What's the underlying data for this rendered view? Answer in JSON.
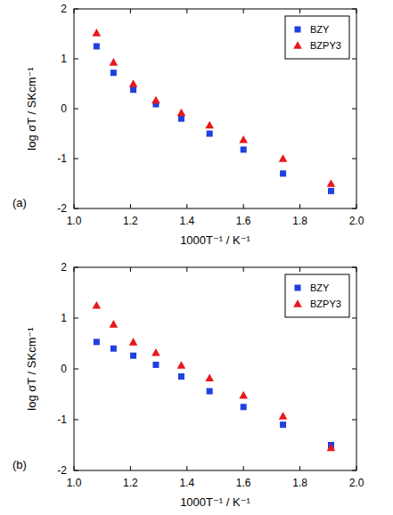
{
  "chart_data": [
    {
      "type": "scatter",
      "annotations": [
        "(a)"
      ],
      "x_label": "1000T⁻¹ / K⁻¹",
      "y_label": "log σT / SKcm⁻¹",
      "x": [
        1.08,
        1.14,
        1.21,
        1.29,
        1.38,
        1.48,
        1.6,
        1.74,
        1.91
      ],
      "series": [
        {
          "name": "BZY",
          "color": "#1f3fe0",
          "marker": "square",
          "values": [
            1.25,
            0.72,
            0.38,
            0.09,
            -0.2,
            -0.5,
            -0.82,
            -1.3,
            -1.65
          ]
        },
        {
          "name": "BZPY3",
          "color": "#e8171b",
          "marker": "triangle",
          "values": [
            1.52,
            0.93,
            0.5,
            0.17,
            -0.08,
            -0.33,
            -0.62,
            -1.0,
            -1.5
          ]
        }
      ],
      "xlim": [
        1.0,
        2.0
      ],
      "xticks": [
        {
          "value": 1.0,
          "label": "1.0"
        },
        {
          "value": 1.2,
          "label": "1.2"
        },
        {
          "value": 1.4,
          "label": "1.4"
        },
        {
          "value": 1.6,
          "label": "1.6"
        },
        {
          "value": 1.8,
          "label": "1.8"
        },
        {
          "value": 2.0,
          "label": "2.0"
        }
      ],
      "ylim": [
        -2,
        2
      ],
      "yticks": [
        -2,
        -1,
        0,
        1,
        2
      ],
      "legend": "top-right",
      "grid": false
    },
    {
      "type": "scatter",
      "annotations": [
        "(b)"
      ],
      "x_label": "1000T⁻¹ / K⁻¹",
      "y_label": "log σT / SKcm⁻¹",
      "x": [
        1.08,
        1.14,
        1.21,
        1.29,
        1.38,
        1.48,
        1.6,
        1.74,
        1.91
      ],
      "series": [
        {
          "name": "BZY",
          "color": "#1f3fe0",
          "marker": "square",
          "values": [
            0.53,
            0.4,
            0.26,
            0.08,
            -0.15,
            -0.44,
            -0.75,
            -1.1,
            -1.5
          ]
        },
        {
          "name": "BZPY3",
          "color": "#e8171b",
          "marker": "triangle",
          "values": [
            1.25,
            0.88,
            0.53,
            0.32,
            0.07,
            -0.18,
            -0.52,
            -0.93,
            -1.55
          ]
        }
      ],
      "xlim": [
        1.0,
        2.0
      ],
      "xticks": [
        {
          "value": 1.0,
          "label": "1.0"
        },
        {
          "value": 1.2,
          "label": "1.2"
        },
        {
          "value": 1.4,
          "label": "1.4"
        },
        {
          "value": 1.6,
          "label": "1.6"
        },
        {
          "value": 1.8,
          "label": "1.8"
        },
        {
          "value": 2.0,
          "label": "2.0"
        }
      ],
      "ylim": [
        -2,
        2
      ],
      "yticks": [
        -2,
        -1,
        0,
        1,
        2
      ],
      "legend": "top-right",
      "grid": false
    }
  ]
}
